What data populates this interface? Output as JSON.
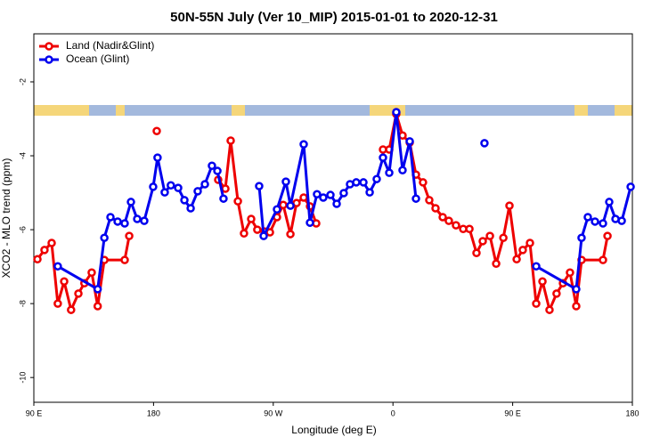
{
  "chart_data": {
    "type": "line",
    "title": "50N-55N July (Ver 10_MIP)   2015-01-01 to 2020-12-31",
    "x_label": "Longitude (deg E)",
    "y_label": "XCO2 - MLO trend (ppm)",
    "xlim": [
      90,
      540
    ],
    "xticks": [
      {
        "value": 90,
        "label": "90 E"
      },
      {
        "value": 180,
        "label": "180"
      },
      {
        "value": 270,
        "label": "90 W"
      },
      {
        "value": 360,
        "label": "0"
      },
      {
        "value": 450,
        "label": "90 E"
      },
      {
        "value": 540,
        "label": "180"
      }
    ],
    "ylim": [
      -10.67,
      -0.7
    ],
    "yticks": [
      -2,
      -4,
      -6,
      -8,
      -10
    ],
    "legend": "top-left",
    "series": [
      {
        "name": "Land (Nadir&Glint)",
        "color": "#ee0000",
        "x": [
          92.7,
          98,
          103.4,
          108,
          112.8,
          118,
          123.5,
          128,
          133.5,
          138,
          143,
          158.3,
          161.7,
          null,
          182.4,
          null,
          228.6,
          234,
          238,
          243.4,
          248,
          253.4,
          258,
          263.4,
          267.5,
          272.8,
          277.5,
          282.9,
          287.5,
          292.9,
          297.6,
          302.3,
          null,
          352.5,
          357.2,
          362.5,
          367.2,
          372.6,
          377.3,
          382.6,
          387.3,
          392,
          397.4,
          402,
          407.4,
          412.8,
          417.5,
          422.8,
          427.5,
          432.9,
          437.6,
          443,
          447.6,
          453,
          457.6,
          463,
          467.7,
          472.4,
          477.7,
          483,
          487.8,
          493.1,
          497.8,
          501.8,
          517.9,
          521.3
        ],
        "values": [
          -6.8,
          -6.55,
          -6.36,
          -8.0,
          -7.4,
          -8.17,
          -7.73,
          -7.45,
          -7.16,
          -8.07,
          -6.82,
          -6.82,
          -6.17,
          null,
          -3.33,
          null,
          -4.65,
          -4.89,
          -3.59,
          -5.23,
          -6.1,
          -5.71,
          -6.0,
          -6.05,
          -6.07,
          -5.66,
          -5.33,
          -6.12,
          -5.28,
          -5.13,
          -5.37,
          -5.83,
          null,
          -3.83,
          -3.83,
          -2.87,
          -3.45,
          -3.64,
          -4.51,
          -4.72,
          -5.2,
          -5.42,
          -5.66,
          -5.76,
          -5.88,
          -5.98,
          -5.98,
          -6.63,
          -6.31,
          -6.17,
          -6.92,
          -6.22,
          -5.35,
          -6.8,
          -6.55,
          -6.36,
          -8.0,
          -7.4,
          -8.17,
          -7.73,
          -7.45,
          -7.16,
          -8.07,
          -6.82,
          -6.82,
          -6.17
        ]
      },
      {
        "name": "Ocean (Glint)",
        "color": "#0000ee",
        "x": [
          108,
          138,
          143,
          147.6,
          153,
          158.3,
          163,
          167.7,
          173,
          179.7,
          183,
          188.4,
          193,
          198.5,
          203.2,
          207.9,
          213.2,
          218.6,
          223.9,
          228,
          232.6,
          null,
          259.4,
          262.8,
          272.8,
          279.5,
          282.9,
          292.9,
          297.6,
          302.9,
          307.6,
          313,
          317.7,
          323,
          327.7,
          332.4,
          337.8,
          342.5,
          347.8,
          352.5,
          357.2,
          362.5,
          367.2,
          372.6,
          377.3,
          null,
          428.8,
          null,
          467.7,
          497.8,
          501.8,
          506.5,
          511.9,
          517.9,
          522.6,
          527.3,
          532,
          538.7
        ],
        "values": [
          -6.99,
          -7.61,
          -6.22,
          -5.66,
          -5.78,
          -5.83,
          -5.25,
          -5.71,
          -5.76,
          -4.84,
          -4.05,
          -4.99,
          -4.8,
          -4.87,
          -5.2,
          -5.42,
          -4.96,
          -4.77,
          -4.27,
          -4.41,
          -5.16,
          null,
          -4.82,
          -6.17,
          -5.45,
          -4.7,
          -5.35,
          -3.69,
          -5.81,
          -5.04,
          -5.13,
          -5.06,
          -5.3,
          -5.01,
          -4.77,
          -4.72,
          -4.72,
          -4.99,
          -4.63,
          -4.05,
          -4.46,
          -2.82,
          -4.39,
          -3.61,
          -5.16,
          null,
          -3.66,
          null,
          -6.99,
          -7.61,
          -6.22,
          -5.66,
          -5.78,
          -5.83,
          -5.25,
          -5.71,
          -5.76,
          -4.84
        ]
      }
    ]
  }
}
